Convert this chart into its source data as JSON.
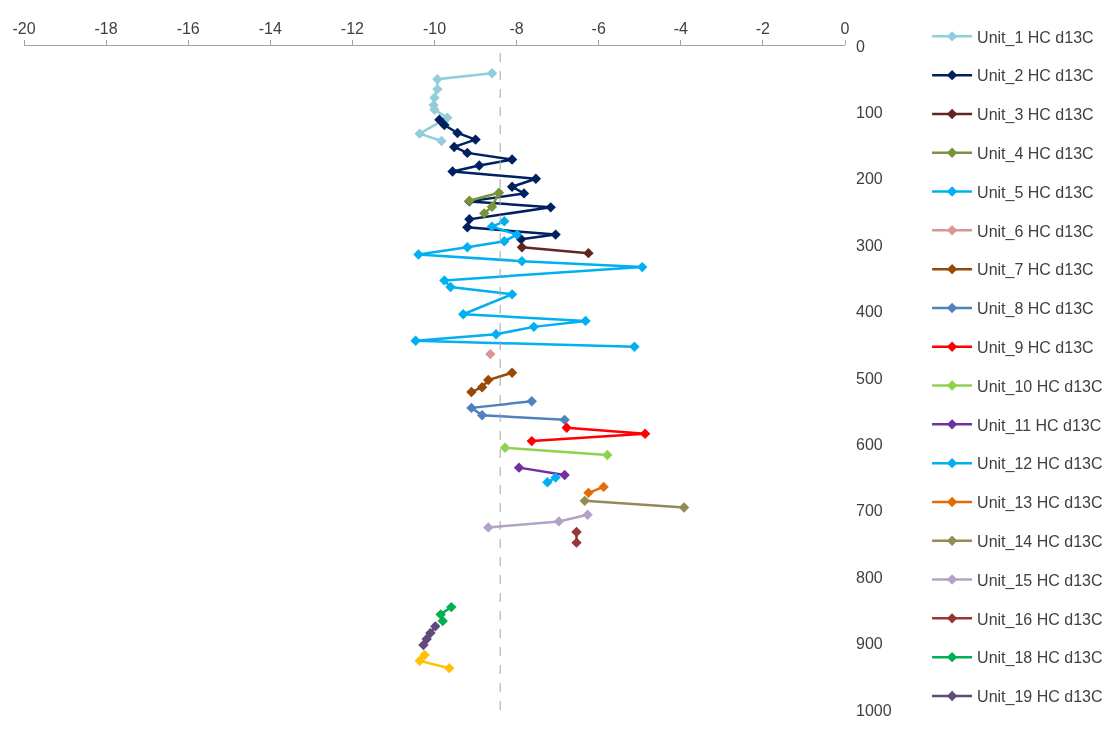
{
  "chart_data": {
    "type": "line",
    "marker": "diamond",
    "line_style": "solid",
    "legend": "right",
    "xlim": [
      -20,
      0
    ],
    "xticks": [
      -20,
      -18,
      -16,
      -14,
      -12,
      -10,
      -8,
      -6,
      -4,
      -2,
      0
    ],
    "ylim": [
      1000,
      0
    ],
    "yticks": [
      0,
      100,
      200,
      300,
      400,
      500,
      600,
      700,
      800,
      900,
      1000
    ],
    "ref_lines": [
      {
        "axis": "x",
        "value": -8.4,
        "label": null,
        "color": "#a6a6a6",
        "line_style": "dashed"
      }
    ],
    "series": [
      {
        "name": "Unit_1 HC d13C",
        "color": "#92cddc",
        "x": [
          -8.6,
          -9.93,
          -9.93,
          -10.0,
          -10.02,
          -10.0,
          -9.69,
          -10.36,
          -9.83
        ],
        "values": [
          41,
          50,
          65,
          78,
          89,
          96,
          108,
          132,
          143
        ]
      },
      {
        "name": "Unit_2 HC d13C",
        "color": "#002060",
        "x": [
          -9.88,
          -9.76,
          -9.44,
          -9.0,
          -9.52,
          -9.2,
          -8.11,
          -8.91,
          -9.56,
          -7.53,
          -8.11,
          -7.82,
          -9.15,
          -7.17,
          -9.15,
          -9.2,
          -7.05,
          -7.89
        ],
        "values": [
          111,
          119,
          131,
          141,
          152,
          161,
          171,
          180,
          189,
          200,
          212,
          222,
          234,
          243,
          261,
          273,
          284,
          291
        ]
      },
      {
        "name": "Unit_3 HC d13C",
        "color": "#632523",
        "x": [
          -7.87,
          -6.25
        ],
        "values": [
          303,
          312
        ]
      },
      {
        "name": "Unit_4 HC d13C",
        "color": "#77933c",
        "x": [
          -9.15,
          -8.43,
          -8.6,
          -8.79
        ],
        "values": [
          233,
          221,
          242,
          252
        ]
      },
      {
        "name": "Unit_5 HC d13C",
        "color": "#00b0f0",
        "x": [
          -8.3,
          -8.6,
          -7.99,
          -8.3,
          -9.2,
          -10.39,
          -7.87,
          -4.94,
          -9.76,
          -9.61,
          -8.11,
          -9.3,
          -6.32,
          -7.58,
          -8.5,
          -10.46,
          -5.13
        ],
        "values": [
          264,
          272,
          284,
          294,
          303,
          314,
          324,
          333,
          353,
          363,
          374,
          404,
          414,
          423,
          434,
          444,
          453
        ]
      },
      {
        "name": "Unit_6 HC d13C",
        "color": "#d99694",
        "x": [
          -8.64
        ],
        "values": [
          464
        ]
      },
      {
        "name": "Unit_7 HC d13C",
        "color": "#984807",
        "x": [
          -8.11,
          -8.69,
          -8.84,
          -9.1
        ],
        "values": [
          492,
          503,
          514,
          521
        ]
      },
      {
        "name": "Unit_8 HC d13C",
        "color": "#4f81bd",
        "x": [
          -7.63,
          -9.1,
          -8.84,
          -6.83
        ],
        "values": [
          535,
          545,
          556,
          563
        ]
      },
      {
        "name": "Unit_9 HC d13C",
        "color": "#ff0000",
        "x": [
          -6.78,
          -4.87,
          -7.63
        ],
        "values": [
          575,
          584,
          595
        ]
      },
      {
        "name": "Unit_10 HC d13C",
        "color": "#92d050",
        "x": [
          -8.28,
          -5.79
        ],
        "values": [
          605,
          616
        ]
      },
      {
        "name": "Unit_11 HC d13C",
        "color": "#7030a0",
        "x": [
          -7.94,
          -6.83
        ],
        "values": [
          635,
          646
        ]
      },
      {
        "name": "Unit_12 HC d13C",
        "color": "#00b0f0",
        "x": [
          -7.25,
          -7.05
        ],
        "values": [
          657,
          650
        ]
      },
      {
        "name": "Unit_13 HC d13C",
        "color": "#e36c09",
        "x": [
          -6.25,
          -5.88
        ],
        "values": [
          673,
          664
        ]
      },
      {
        "name": "Unit_14 HC d13C",
        "color": "#948a54",
        "x": [
          -6.34,
          -3.92
        ],
        "values": [
          685,
          695
        ]
      },
      {
        "name": "Unit_15 HC d13C",
        "color": "#b3a2c7",
        "x": [
          -8.69,
          -6.97,
          -6.27
        ],
        "values": [
          725,
          716,
          706
        ]
      },
      {
        "name": "Unit_16 HC d13C",
        "color": "#953735",
        "x": [
          -6.54,
          -6.54
        ],
        "values": [
          732,
          748
        ]
      },
      {
        "color": "#ffc000",
        "x": [
          -10.24,
          -10.36,
          -9.64
        ],
        "values": [
          917,
          926,
          937
        ]
      },
      {
        "name": "Unit_18 HC d13C",
        "color": "#00b050",
        "x": [
          -9.59,
          -9.85,
          -9.8
        ],
        "values": [
          845,
          856,
          866
        ]
      },
      {
        "name": "Unit_19 HC d13C",
        "color": "#604a7b",
        "x": [
          -9.98,
          -10.1,
          -10.19,
          -10.27
        ],
        "values": [
          874,
          884,
          893,
          902
        ]
      }
    ]
  }
}
